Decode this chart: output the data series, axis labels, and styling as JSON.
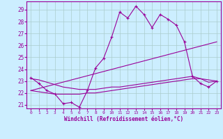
{
  "background_color": "#cceeff",
  "grid_color": "#aacccc",
  "line_color": "#990099",
  "xlabel": "Windchill (Refroidissement éolien,°C)",
  "xlim": [
    -0.5,
    23.5
  ],
  "ylim": [
    20.7,
    29.7
  ],
  "yticks": [
    21,
    22,
    23,
    24,
    25,
    26,
    27,
    28,
    29
  ],
  "xticks": [
    0,
    1,
    2,
    3,
    4,
    5,
    6,
    7,
    8,
    9,
    10,
    11,
    12,
    13,
    14,
    15,
    16,
    17,
    18,
    19,
    20,
    21,
    22,
    23
  ],
  "series": [
    {
      "x": [
        0,
        1,
        2,
        3,
        4,
        5,
        6,
        7,
        8,
        9,
        10,
        11,
        12,
        13,
        14,
        15,
        16,
        17,
        18,
        19,
        20,
        21,
        22,
        23
      ],
      "y": [
        23.3,
        22.8,
        22.2,
        21.9,
        21.1,
        21.2,
        20.8,
        22.2,
        24.1,
        24.9,
        26.7,
        28.8,
        28.3,
        29.3,
        28.6,
        27.5,
        28.6,
        28.2,
        27.7,
        26.3,
        23.4,
        22.8,
        22.5,
        23.0
      ],
      "marker": "+"
    },
    {
      "x": [
        0,
        23
      ],
      "y": [
        22.2,
        26.3
      ],
      "marker": null
    },
    {
      "x": [
        0,
        1,
        2,
        3,
        4,
        5,
        6,
        7,
        8,
        9,
        10,
        11,
        12,
        13,
        14,
        15,
        16,
        17,
        18,
        19,
        20,
        21,
        22,
        23
      ],
      "y": [
        23.2,
        23.1,
        22.9,
        22.7,
        22.5,
        22.4,
        22.3,
        22.3,
        22.3,
        22.4,
        22.5,
        22.5,
        22.6,
        22.7,
        22.8,
        22.9,
        23.0,
        23.1,
        23.2,
        23.3,
        23.4,
        23.2,
        22.9,
        23.0
      ],
      "marker": null
    },
    {
      "x": [
        0,
        1,
        2,
        3,
        4,
        5,
        6,
        7,
        8,
        9,
        10,
        11,
        12,
        13,
        14,
        15,
        16,
        17,
        18,
        19,
        20,
        21,
        22,
        23
      ],
      "y": [
        22.2,
        22.1,
        22.0,
        21.9,
        21.9,
        21.9,
        21.9,
        22.0,
        22.0,
        22.1,
        22.2,
        22.3,
        22.4,
        22.5,
        22.6,
        22.7,
        22.8,
        22.9,
        23.0,
        23.1,
        23.2,
        23.2,
        23.1,
        23.0
      ],
      "marker": null
    }
  ]
}
